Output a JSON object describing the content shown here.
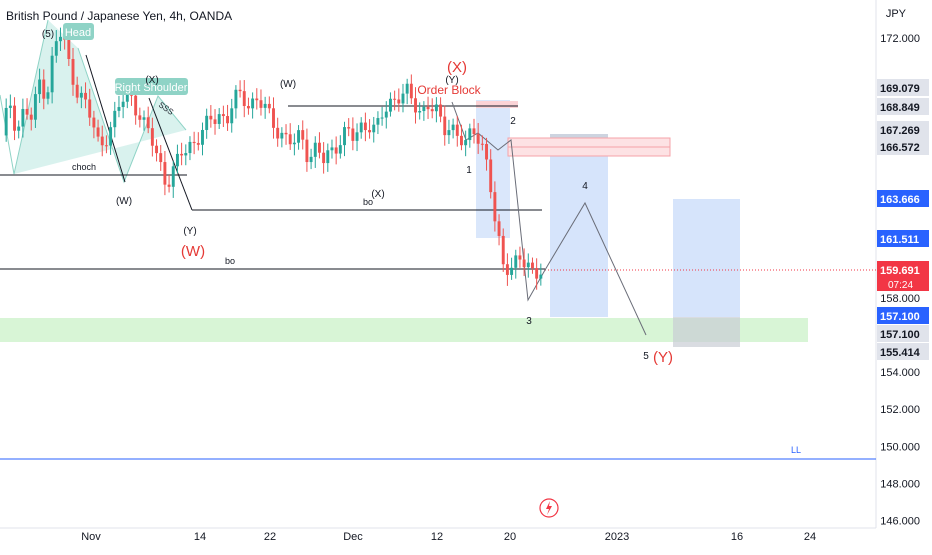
{
  "header": {
    "title": "British Pound / Japanese Yen, 4h, OANDA",
    "currency": "JPY"
  },
  "colors": {
    "up": "#26a69a",
    "down": "#ef5350",
    "wave_red": "#e53935",
    "wave_black": "#131722",
    "zone_blue": "#d6e4fb",
    "zone_green": "#d8f5d6",
    "pattern_fill": "#d2f0eb",
    "label_bg_default": "#e0e3eb",
    "price_tag_blue": "#2962ff",
    "price_tag_red": "#f23645"
  },
  "chart_data": {
    "type": "candlestick",
    "title": "British Pound / Japanese Yen, 4h, OANDA",
    "xlabel": "",
    "ylabel": "JPY",
    "ylim": [
      145.6,
      173.4
    ],
    "x_ticks": [
      "Nov",
      "14",
      "22",
      "Dec",
      "12",
      "20",
      "2023",
      "16",
      "24"
    ],
    "y_ticks": [
      "146.000",
      "148.000",
      "150.000",
      "152.000",
      "154.000",
      "158.000",
      "172.000"
    ],
    "current_price": {
      "value": "159.691",
      "countdown": "07:24"
    },
    "price_tags": [
      {
        "value": "169.079",
        "style": "grey"
      },
      {
        "value": "168.849",
        "style": "grey"
      },
      {
        "value": "167.269",
        "style": "grey"
      },
      {
        "value": "166.572",
        "style": "grey"
      },
      {
        "value": "163.666",
        "style": "blue"
      },
      {
        "value": "161.511",
        "style": "blue"
      },
      {
        "value": "157.100",
        "style": "blue"
      },
      {
        "value": "157.100",
        "style": "grey"
      },
      {
        "value": "155.414",
        "style": "grey"
      }
    ],
    "price_path": [
      [
        0,
        166.5
      ],
      [
        0.06,
        168.7
      ],
      [
        0.13,
        167.0
      ],
      [
        0.19,
        168.2
      ],
      [
        0.25,
        167.5
      ],
      [
        0.31,
        169.7
      ],
      [
        0.38,
        169.0
      ],
      [
        0.44,
        171.5
      ],
      [
        0.5,
        172.3
      ],
      [
        0.56,
        170.5
      ],
      [
        0.63,
        169.3
      ],
      [
        0.69,
        168.5
      ],
      [
        0.75,
        167.5
      ],
      [
        0.81,
        166.2
      ],
      [
        0.88,
        166.8
      ],
      [
        0.94,
        167.5
      ],
      [
        1.0,
        168.6
      ],
      [
        1.06,
        169.2
      ],
      [
        1.13,
        168.2
      ],
      [
        1.19,
        167.2
      ],
      [
        1.25,
        166.5
      ],
      [
        1.31,
        165.5
      ],
      [
        1.38,
        164.1
      ],
      [
        1.44,
        164.8
      ],
      [
        1.5,
        165.8
      ],
      [
        1.56,
        166.3
      ],
      [
        1.63,
        166.5
      ],
      [
        1.69,
        167.0
      ],
      [
        1.75,
        167.6
      ],
      [
        1.81,
        168.0
      ],
      [
        1.88,
        167.5
      ],
      [
        1.94,
        168.6
      ],
      [
        2.0,
        168.9
      ],
      [
        2.06,
        168.5
      ],
      [
        2.13,
        168.7
      ],
      [
        2.19,
        168.2
      ],
      [
        2.25,
        167.6
      ],
      [
        2.31,
        167.0
      ],
      [
        2.38,
        166.6
      ],
      [
        2.44,
        166.2
      ],
      [
        2.5,
        166.8
      ],
      [
        2.56,
        165.6
      ],
      [
        2.63,
        166.1
      ],
      [
        2.69,
        165.3
      ],
      [
        2.75,
        165.9
      ],
      [
        2.81,
        166.5
      ],
      [
        2.88,
        167.0
      ],
      [
        2.94,
        166.5
      ],
      [
        3.0,
        167.2
      ],
      [
        3.06,
        167.5
      ],
      [
        3.13,
        167.0
      ],
      [
        3.19,
        167.9
      ],
      [
        3.25,
        168.6
      ],
      [
        3.31,
        169.0
      ],
      [
        3.38,
        169.1
      ],
      [
        3.44,
        168.3
      ],
      [
        3.5,
        168.0
      ],
      [
        3.56,
        168.6
      ],
      [
        3.63,
        168.0
      ],
      [
        3.69,
        166.9
      ],
      [
        3.75,
        167.4
      ],
      [
        3.81,
        166.8
      ],
      [
        3.88,
        166.2
      ],
      [
        3.94,
        166.9
      ],
      [
        4.0,
        166.6
      ],
      [
        4.06,
        165.0
      ],
      [
        4.13,
        161.6
      ],
      [
        4.19,
        159.6
      ],
      [
        4.25,
        159.8
      ],
      [
        4.31,
        160.3
      ],
      [
        4.38,
        159.6
      ],
      [
        4.44,
        159.2
      ],
      [
        4.5,
        159.7
      ]
    ],
    "annotations": {
      "wave_labels": [
        {
          "text": "(5)",
          "price": 172.8,
          "color": "black"
        },
        {
          "text": "(X)",
          "price": 169.3,
          "color": "black"
        },
        {
          "text": "(W)",
          "price": 163.8,
          "color": "black"
        },
        {
          "text": "(Y)",
          "price": 162.5,
          "color": "black"
        },
        {
          "text": "(W)",
          "price": 161.3,
          "color": "red"
        },
        {
          "text": "(W)",
          "price": 169.0,
          "color": "black"
        },
        {
          "text": "(X)",
          "price": 164.2,
          "color": "black"
        },
        {
          "text": "(X)",
          "price": 171.0,
          "color": "red"
        },
        {
          "text": "(Y)",
          "price": 169.4,
          "color": "black"
        },
        {
          "text": "1",
          "price": 165.5,
          "color": "black"
        },
        {
          "text": "2",
          "price": 167.8,
          "color": "black"
        },
        {
          "text": "3",
          "price": 156.9,
          "color": "black"
        },
        {
          "text": "4",
          "price": 164.6,
          "color": "black"
        },
        {
          "text": "5",
          "price": 154.9,
          "color": "black"
        },
        {
          "text": "(Y)",
          "price": 154.8,
          "color": "red"
        }
      ],
      "texts": [
        {
          "text": "Head",
          "kind": "pill"
        },
        {
          "text": "Right Shoulder",
          "kind": "pill"
        },
        {
          "text": "SSS",
          "kind": "small"
        },
        {
          "text": "choch",
          "kind": "small"
        },
        {
          "text": "bo",
          "kind": "small"
        },
        {
          "text": "bo",
          "kind": "small"
        },
        {
          "text": "Order Block",
          "kind": "red"
        },
        {
          "text": "LL",
          "kind": "blue"
        }
      ],
      "horizontal_levels": [
        {
          "price": 168.9,
          "label": "(W)"
        },
        {
          "price": 166.0,
          "label": "choch"
        },
        {
          "price": 163.3,
          "label": "bo"
        },
        {
          "price": 159.9,
          "label": "bo"
        },
        {
          "price": 149.2,
          "label": "LL"
        }
      ],
      "zones": [
        {
          "name": "order-block",
          "from": 166.6,
          "to": 167.3
        },
        {
          "name": "target-zone",
          "from": 155.8,
          "to": 157.1
        },
        {
          "name": "long-position",
          "from": 157.1,
          "to": 163.7
        },
        {
          "name": "wave4-box",
          "from": 157.1,
          "to": 167.4
        }
      ]
    }
  }
}
